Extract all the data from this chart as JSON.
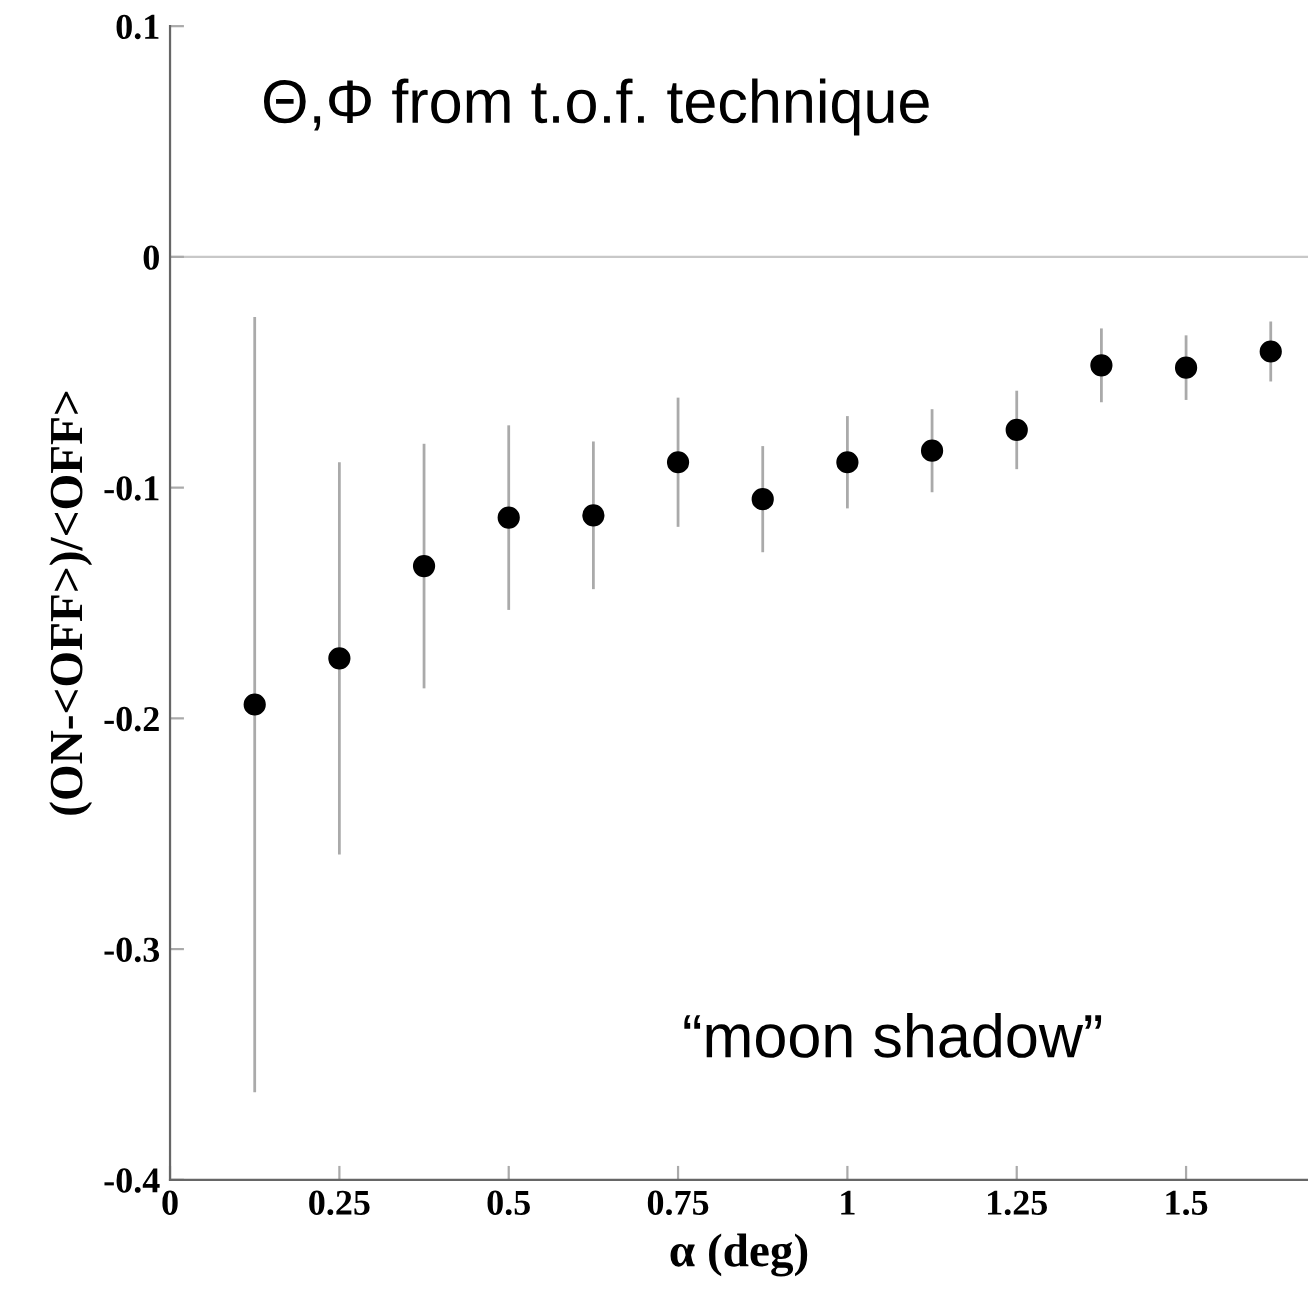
{
  "chart_data": {
    "type": "scatter",
    "xlabel": "α (deg)",
    "ylabel": "(ON-<OFF>)/<OFF>",
    "x": [
      0.125,
      0.25,
      0.375,
      0.5,
      0.625,
      0.75,
      0.875,
      1,
      1.125,
      1.25,
      1.375,
      1.5,
      1.625
    ],
    "values": [
      -0.194,
      -0.174,
      -0.134,
      -0.113,
      -0.112,
      -0.089,
      -0.105,
      -0.089,
      -0.084,
      -0.075,
      -0.047,
      -0.048,
      -0.041
    ],
    "errors": [
      0.168,
      0.085,
      0.053,
      0.04,
      0.032,
      0.028,
      0.023,
      0.02,
      0.018,
      0.017,
      0.016,
      0.014,
      0.013
    ],
    "color": "#000000",
    "marker": "circle",
    "xlim": [
      0,
      1.68
    ],
    "ylim": [
      -0.4,
      0.1
    ],
    "xticks": [
      0,
      0.25,
      0.5,
      0.75,
      1,
      1.25,
      1.5
    ],
    "yticks": [
      {
        "value": -0.4,
        "label": "-0.4"
      },
      {
        "value": -0.3,
        "label": "-0.3"
      },
      {
        "value": -0.2,
        "label": "-0.2"
      },
      {
        "value": -0.1,
        "label": "-0.1"
      },
      0,
      0.1
    ],
    "ref_lines": [
      {
        "axis": "y",
        "value": 0,
        "color": "#c8c8c8"
      }
    ],
    "annotations": [
      "Θ,Φ from t.o.f. technique",
      "“moon shadow”"
    ]
  }
}
